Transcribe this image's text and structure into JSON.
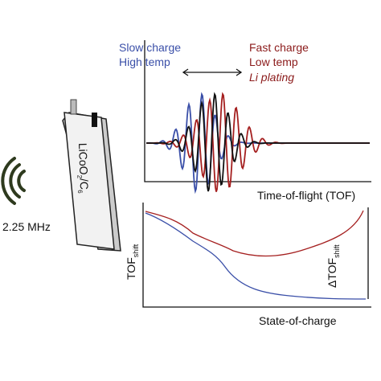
{
  "battery": {
    "label": [
      "LiCoO",
      "2",
      "/C",
      "6"
    ],
    "frequency": "2.25 MHz"
  },
  "top_panel": {
    "left_legend": [
      "Slow charge",
      "High temp"
    ],
    "right_legend": [
      "Fast charge",
      "Low temp",
      "Li plating"
    ],
    "x_label": "Time-of-flight (TOF)"
  },
  "bottom_panel": {
    "y_label": [
      "TOF",
      "shift"
    ],
    "delta_label": [
      "ΔTOF",
      "shift"
    ],
    "x_label": "State-of-charge"
  }
}
